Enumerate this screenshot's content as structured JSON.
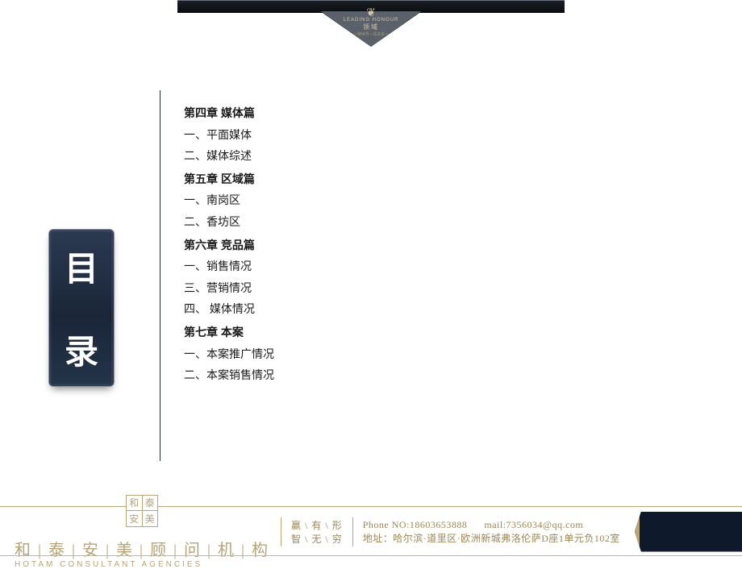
{
  "colors": {
    "banner_dark": "#0a0d10",
    "banner_edge": "#5a616a",
    "gold": "#b9a574",
    "gold_text": "#9c8651",
    "navy_box_top": "#2b3a52",
    "navy_box_bottom": "#1a2538",
    "vline": "#1f2a3b",
    "text": "#1a1a1a",
    "white": "#ffffff"
  },
  "banner": {
    "brandline_en": "LEADING HONOUR",
    "brand_cn": "领域",
    "brand_sub": "• 御世界 • 领未来 •",
    "icon_glyph": "❦"
  },
  "side_title": {
    "char1": "目",
    "char2": "录"
  },
  "toc": [
    {
      "type": "chapter",
      "text": "第四章 媒体篇"
    },
    {
      "type": "item",
      "text": "一、平面媒体"
    },
    {
      "type": "item",
      "text": "二、媒体综述"
    },
    {
      "type": "chapter",
      "text": "第五章  区域篇"
    },
    {
      "type": "item",
      "text": "一、南岗区"
    },
    {
      "type": "item",
      "text": "二、香坊区"
    },
    {
      "type": "chapter",
      "text": "第六章  竞品篇"
    },
    {
      "type": "item",
      "text": "一、销售情况"
    },
    {
      "type": "item",
      "text": "三、营销情况"
    },
    {
      "type": "item",
      "text": "四、 媒体情况"
    },
    {
      "type": "chapter",
      "text": "第七章  本案"
    },
    {
      "type": "item",
      "text": "一、本案推广情况"
    },
    {
      "type": "item",
      "text": "二、本案销售情况"
    }
  ],
  "footer": {
    "brand_seal": [
      "和",
      "泰",
      "安",
      "美"
    ],
    "brand_cn": "和 | 泰 | 安 | 美 | 顾 | 问 | 机 | 构",
    "brand_en": "HOTAM CONSULTANT AGENCIES",
    "motto_line1": "赢 \\ 有 \\ 形",
    "motto_line2": "智 \\ 无 \\ 穷",
    "phone": "Phone NO:18603653888",
    "mail": "mail:7356034@qq.com",
    "address": "地址：哈尔滨·道里区·欧洲新城弗洛伦萨D座1单元负102室"
  }
}
